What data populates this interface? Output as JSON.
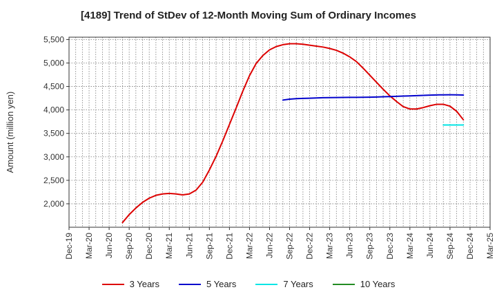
{
  "chart_data": {
    "type": "line",
    "title": "[4189]  Trend of StDev of 12-Month Moving Sum of Ordinary Incomes",
    "ylabel": "Amount (million yen)",
    "xlabel": "",
    "ylim": [
      1500,
      5550
    ],
    "xlim": [
      "2019-12",
      "2025-03"
    ],
    "yticks": [
      2000,
      2500,
      3000,
      3500,
      4000,
      4500,
      5000,
      5500
    ],
    "ytick_labels": [
      "2,000",
      "2,500",
      "3,000",
      "3,500",
      "4,000",
      "4,500",
      "5,000",
      "5,500"
    ],
    "xtick_labels": [
      "Dec-19",
      "Mar-20",
      "Jun-20",
      "Sep-20",
      "Dec-20",
      "Mar-21",
      "Jun-21",
      "Sep-21",
      "Dec-21",
      "Mar-22",
      "Jun-22",
      "Sep-22",
      "Dec-22",
      "Mar-23",
      "Jun-23",
      "Sep-23",
      "Dec-23",
      "Mar-24",
      "Jun-24",
      "Sep-24",
      "Dec-24",
      "Mar-25"
    ],
    "grid": true,
    "legend_position": "bottom",
    "series": [
      {
        "name": "3 Years",
        "color": "#dd0000",
        "points": [
          [
            "2020-08",
            1600
          ],
          [
            "2020-09",
            1770
          ],
          [
            "2020-10",
            1910
          ],
          [
            "2020-11",
            2030
          ],
          [
            "2020-12",
            2120
          ],
          [
            "2021-01",
            2180
          ],
          [
            "2021-02",
            2210
          ],
          [
            "2021-03",
            2220
          ],
          [
            "2021-04",
            2210
          ],
          [
            "2021-05",
            2190
          ],
          [
            "2021-06",
            2210
          ],
          [
            "2021-07",
            2290
          ],
          [
            "2021-08",
            2460
          ],
          [
            "2021-09",
            2720
          ],
          [
            "2021-10",
            3010
          ],
          [
            "2021-11",
            3340
          ],
          [
            "2021-12",
            3690
          ],
          [
            "2022-01",
            4040
          ],
          [
            "2022-02",
            4400
          ],
          [
            "2022-03",
            4730
          ],
          [
            "2022-04",
            4990
          ],
          [
            "2022-05",
            5160
          ],
          [
            "2022-06",
            5280
          ],
          [
            "2022-07",
            5350
          ],
          [
            "2022-08",
            5390
          ],
          [
            "2022-09",
            5410
          ],
          [
            "2022-10",
            5410
          ],
          [
            "2022-11",
            5400
          ],
          [
            "2022-12",
            5380
          ],
          [
            "2023-01",
            5360
          ],
          [
            "2023-02",
            5340
          ],
          [
            "2023-03",
            5310
          ],
          [
            "2023-04",
            5270
          ],
          [
            "2023-05",
            5210
          ],
          [
            "2023-06",
            5130
          ],
          [
            "2023-07",
            5030
          ],
          [
            "2023-08",
            4890
          ],
          [
            "2023-09",
            4740
          ],
          [
            "2023-10",
            4590
          ],
          [
            "2023-11",
            4440
          ],
          [
            "2023-12",
            4300
          ],
          [
            "2024-01",
            4180
          ],
          [
            "2024-02",
            4070
          ],
          [
            "2024-03",
            4020
          ],
          [
            "2024-04",
            4020
          ],
          [
            "2024-05",
            4050
          ],
          [
            "2024-06",
            4090
          ],
          [
            "2024-07",
            4120
          ],
          [
            "2024-08",
            4120
          ],
          [
            "2024-09",
            4080
          ],
          [
            "2024-10",
            3970
          ],
          [
            "2024-11",
            3790
          ]
        ]
      },
      {
        "name": "5 Years",
        "color": "#0000cc",
        "points": [
          [
            "2022-08",
            4210
          ],
          [
            "2022-09",
            4230
          ],
          [
            "2022-10",
            4240
          ],
          [
            "2022-11",
            4245
          ],
          [
            "2022-12",
            4250
          ],
          [
            "2023-01",
            4255
          ],
          [
            "2023-02",
            4260
          ],
          [
            "2023-03",
            4262
          ],
          [
            "2023-04",
            4265
          ],
          [
            "2023-05",
            4266
          ],
          [
            "2023-06",
            4267
          ],
          [
            "2023-07",
            4268
          ],
          [
            "2023-08",
            4270
          ],
          [
            "2023-09",
            4272
          ],
          [
            "2023-10",
            4275
          ],
          [
            "2023-11",
            4280
          ],
          [
            "2023-12",
            4285
          ],
          [
            "2024-01",
            4290
          ],
          [
            "2024-02",
            4295
          ],
          [
            "2024-03",
            4300
          ],
          [
            "2024-04",
            4305
          ],
          [
            "2024-05",
            4310
          ],
          [
            "2024-06",
            4315
          ],
          [
            "2024-07",
            4320
          ],
          [
            "2024-08",
            4322
          ],
          [
            "2024-09",
            4323
          ],
          [
            "2024-10",
            4322
          ],
          [
            "2024-11",
            4318
          ]
        ]
      },
      {
        "name": "7 Years",
        "color": "#00e5e5",
        "points": [
          [
            "2024-08",
            3680
          ],
          [
            "2024-09",
            3680
          ],
          [
            "2024-10",
            3680
          ],
          [
            "2024-11",
            3680
          ]
        ]
      },
      {
        "name": "10 Years",
        "color": "#228b22",
        "points": []
      }
    ]
  }
}
